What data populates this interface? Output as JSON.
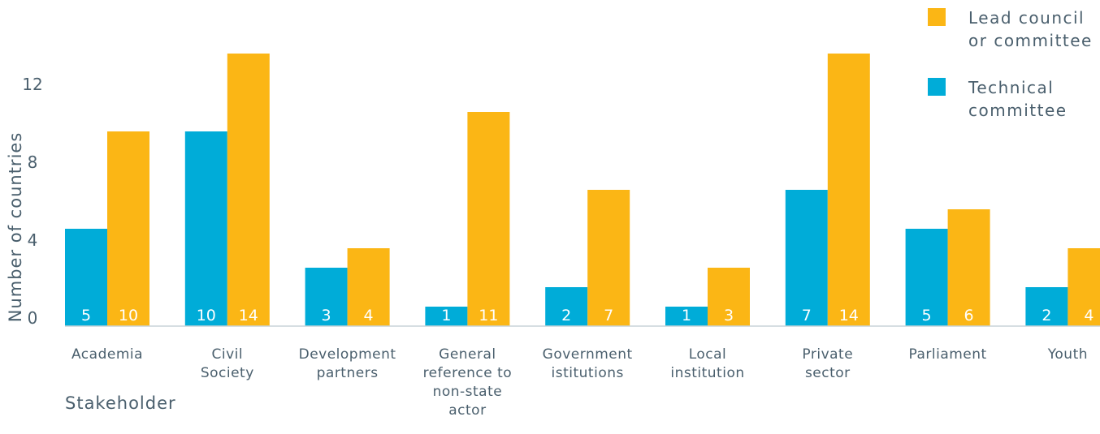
{
  "chart_data": {
    "type": "bar",
    "xlabel": "Stakeholder",
    "ylabel": "Number of countries",
    "ylim": [
      0,
      14
    ],
    "yticks": [
      0,
      4,
      8,
      12
    ],
    "categories": [
      [
        "Academia"
      ],
      [
        "Civil",
        "Society"
      ],
      [
        "Development",
        "partners"
      ],
      [
        "General",
        "reference to",
        "non-state",
        "actor"
      ],
      [
        "Government",
        "istitutions"
      ],
      [
        "Local",
        "institution"
      ],
      [
        "Private",
        "sector"
      ],
      [
        "Parliament"
      ],
      [
        "Youth"
      ]
    ],
    "series": [
      {
        "name": "Technical committee",
        "legend_lines": [
          "Technical",
          "committee"
        ],
        "color": "#00acd8",
        "values": [
          5,
          10,
          3,
          1,
          2,
          1,
          7,
          5,
          2
        ]
      },
      {
        "name": "Lead council or committee",
        "legend_lines": [
          "Lead council",
          "or committee"
        ],
        "color": "#fbb615",
        "values": [
          10,
          14,
          4,
          11,
          7,
          3,
          14,
          6,
          4
        ]
      }
    ],
    "legend_position": "top-right",
    "grid": false
  }
}
